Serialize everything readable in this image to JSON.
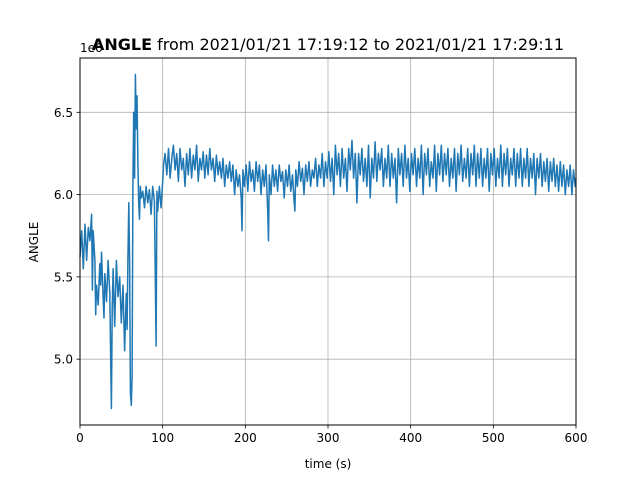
{
  "chart_data": {
    "type": "line",
    "title_bold": "ANGLE",
    "title_rest": " from 2021/01/21 17:19:12 to 2021/01/21 17:29:11",
    "xlabel": "time (s)",
    "ylabel": "ANGLE",
    "offset_label": "1e6",
    "xlim": [
      0,
      600
    ],
    "ylim": [
      4.6,
      6.83
    ],
    "xticks": [
      0,
      100,
      200,
      300,
      400,
      500,
      600
    ],
    "yticks": [
      5.0,
      5.5,
      6.0,
      6.5
    ],
    "xtick_labels": [
      "0",
      "100",
      "200",
      "300",
      "400",
      "500",
      "600"
    ],
    "ytick_labels": [
      "5.0",
      "5.5",
      "6.0",
      "6.5"
    ],
    "grid": true,
    "line_color": "#1f77b4",
    "series": [
      {
        "values": [
          [
            0,
            5.62
          ],
          [
            2,
            5.78
          ],
          [
            4,
            5.55
          ],
          [
            6,
            5.82
          ],
          [
            8,
            5.6
          ],
          [
            10,
            5.8
          ],
          [
            12,
            5.72
          ],
          [
            14,
            5.88
          ],
          [
            15,
            5.42
          ],
          [
            16,
            5.78
          ],
          [
            18,
            5.6
          ],
          [
            19,
            5.27
          ],
          [
            20,
            5.45
          ],
          [
            22,
            5.33
          ],
          [
            24,
            5.58
          ],
          [
            25,
            5.45
          ],
          [
            26,
            5.65
          ],
          [
            28,
            5.38
          ],
          [
            29,
            5.25
          ],
          [
            30,
            5.52
          ],
          [
            32,
            5.35
          ],
          [
            34,
            5.6
          ],
          [
            36,
            5.4
          ],
          [
            37,
            5.04
          ],
          [
            38,
            4.7
          ],
          [
            39,
            5.3
          ],
          [
            40,
            5.55
          ],
          [
            42,
            5.2
          ],
          [
            44,
            5.6
          ],
          [
            46,
            5.38
          ],
          [
            48,
            5.5
          ],
          [
            50,
            5.22
          ],
          [
            52,
            5.45
          ],
          [
            54,
            5.05
          ],
          [
            56,
            5.4
          ],
          [
            57,
            5.18
          ],
          [
            58,
            5.6
          ],
          [
            59,
            5.95
          ],
          [
            60,
            5.6
          ],
          [
            61,
            4.8
          ],
          [
            62,
            4.72
          ],
          [
            63,
            4.9
          ],
          [
            64,
            6.05
          ],
          [
            65,
            6.5
          ],
          [
            66,
            6.1
          ],
          [
            67,
            6.73
          ],
          [
            68,
            6.4
          ],
          [
            69,
            6.6
          ],
          [
            70,
            6.2
          ],
          [
            71,
            5.95
          ],
          [
            72,
            5.85
          ],
          [
            73,
            6.05
          ],
          [
            74,
            5.98
          ],
          [
            76,
            6.02
          ],
          [
            78,
            5.92
          ],
          [
            80,
            6.05
          ],
          [
            82,
            5.95
          ],
          [
            84,
            6.03
          ],
          [
            86,
            5.88
          ],
          [
            88,
            6.05
          ],
          [
            90,
            5.96
          ],
          [
            92,
            5.08
          ],
          [
            93,
            6.02
          ],
          [
            94,
            5.9
          ],
          [
            96,
            6.05
          ],
          [
            98,
            5.92
          ],
          [
            100,
            6.08
          ],
          [
            101,
            6.18
          ],
          [
            103,
            6.25
          ],
          [
            105,
            6.12
          ],
          [
            107,
            6.28
          ],
          [
            109,
            6.1
          ],
          [
            111,
            6.22
          ],
          [
            113,
            6.3
          ],
          [
            115,
            6.15
          ],
          [
            117,
            6.25
          ],
          [
            119,
            6.08
          ],
          [
            121,
            6.28
          ],
          [
            123,
            6.15
          ],
          [
            125,
            6.22
          ],
          [
            127,
            6.05
          ],
          [
            129,
            6.25
          ],
          [
            131,
            6.12
          ],
          [
            133,
            6.28
          ],
          [
            135,
            6.1
          ],
          [
            137,
            6.24
          ],
          [
            139,
            6.15
          ],
          [
            141,
            6.3
          ],
          [
            143,
            6.08
          ],
          [
            145,
            6.22
          ],
          [
            147,
            6.15
          ],
          [
            149,
            6.26
          ],
          [
            151,
            6.1
          ],
          [
            153,
            6.24
          ],
          [
            155,
            6.12
          ],
          [
            157,
            6.28
          ],
          [
            159,
            6.15
          ],
          [
            161,
            6.22
          ],
          [
            163,
            6.08
          ],
          [
            165,
            6.24
          ],
          [
            167,
            6.12
          ],
          [
            169,
            6.2
          ],
          [
            171,
            6.1
          ],
          [
            173,
            6.22
          ],
          [
            175,
            6.05
          ],
          [
            177,
            6.18
          ],
          [
            179,
            6.1
          ],
          [
            181,
            6.2
          ],
          [
            183,
            6.08
          ],
          [
            185,
            6.18
          ],
          [
            187,
            6.0
          ],
          [
            189,
            6.15
          ],
          [
            191,
            6.05
          ],
          [
            193,
            6.12
          ],
          [
            195,
            5.98
          ],
          [
            196,
            5.78
          ],
          [
            197,
            6.15
          ],
          [
            199,
            6.05
          ],
          [
            201,
            6.18
          ],
          [
            203,
            6.02
          ],
          [
            205,
            6.2
          ],
          [
            207,
            6.08
          ],
          [
            209,
            6.15
          ],
          [
            211,
            6.02
          ],
          [
            213,
            6.2
          ],
          [
            215,
            6.08
          ],
          [
            217,
            6.18
          ],
          [
            219,
            6.0
          ],
          [
            221,
            6.15
          ],
          [
            223,
            6.05
          ],
          [
            225,
            6.18
          ],
          [
            227,
            5.9
          ],
          [
            228,
            5.72
          ],
          [
            229,
            6.12
          ],
          [
            231,
            6.0
          ],
          [
            233,
            6.18
          ],
          [
            235,
            6.05
          ],
          [
            237,
            6.15
          ],
          [
            239,
            6.02
          ],
          [
            241,
            6.18
          ],
          [
            243,
            6.08
          ],
          [
            245,
            6.14
          ],
          [
            247,
            5.98
          ],
          [
            249,
            6.15
          ],
          [
            251,
            6.05
          ],
          [
            253,
            6.18
          ],
          [
            255,
            6.02
          ],
          [
            257,
            6.12
          ],
          [
            259,
            5.96
          ],
          [
            260,
            5.9
          ],
          [
            261,
            6.15
          ],
          [
            263,
            6.05
          ],
          [
            265,
            6.2
          ],
          [
            267,
            6.08
          ],
          [
            269,
            6.16
          ],
          [
            271,
            6.0
          ],
          [
            273,
            6.18
          ],
          [
            275,
            6.08
          ],
          [
            277,
            6.2
          ],
          [
            279,
            6.05
          ],
          [
            281,
            6.15
          ],
          [
            283,
            6.1
          ],
          [
            285,
            6.22
          ],
          [
            287,
            6.05
          ],
          [
            289,
            6.18
          ],
          [
            291,
            6.1
          ],
          [
            293,
            6.25
          ],
          [
            295,
            6.05
          ],
          [
            297,
            6.2
          ],
          [
            299,
            6.1
          ],
          [
            301,
            6.26
          ],
          [
            303,
            6.08
          ],
          [
            305,
            6.22
          ],
          [
            307,
            6.0
          ],
          [
            309,
            6.3
          ],
          [
            311,
            6.12
          ],
          [
            313,
            6.25
          ],
          [
            315,
            6.05
          ],
          [
            317,
            6.28
          ],
          [
            319,
            6.1
          ],
          [
            321,
            6.22
          ],
          [
            323,
            6.02
          ],
          [
            325,
            6.28
          ],
          [
            327,
            6.15
          ],
          [
            329,
            6.33
          ],
          [
            331,
            6.1
          ],
          [
            333,
            6.25
          ],
          [
            335,
            5.95
          ],
          [
            337,
            6.25
          ],
          [
            339,
            6.12
          ],
          [
            341,
            6.28
          ],
          [
            343,
            6.08
          ],
          [
            345,
            6.22
          ],
          [
            347,
            6.05
          ],
          [
            349,
            6.3
          ],
          [
            351,
            5.98
          ],
          [
            353,
            6.22
          ],
          [
            355,
            6.1
          ],
          [
            357,
            6.32
          ],
          [
            359,
            6.08
          ],
          [
            361,
            6.25
          ],
          [
            363,
            6.15
          ],
          [
            365,
            6.28
          ],
          [
            367,
            6.05
          ],
          [
            369,
            6.22
          ],
          [
            371,
            6.1
          ],
          [
            373,
            6.3
          ],
          [
            375,
            6.05
          ],
          [
            377,
            6.25
          ],
          [
            379,
            6.1
          ],
          [
            381,
            6.22
          ],
          [
            383,
            5.95
          ],
          [
            385,
            6.28
          ],
          [
            387,
            6.12
          ],
          [
            389,
            6.25
          ],
          [
            391,
            6.05
          ],
          [
            393,
            6.3
          ],
          [
            395,
            6.1
          ],
          [
            397,
            6.22
          ],
          [
            399,
            6.02
          ],
          [
            401,
            6.25
          ],
          [
            403,
            6.12
          ],
          [
            405,
            6.28
          ],
          [
            407,
            6.05
          ],
          [
            409,
            6.22
          ],
          [
            411,
            6.1
          ],
          [
            413,
            6.3
          ],
          [
            415,
            6.0
          ],
          [
            417,
            6.25
          ],
          [
            419,
            6.12
          ],
          [
            421,
            6.28
          ],
          [
            423,
            6.05
          ],
          [
            425,
            6.2
          ],
          [
            427,
            6.1
          ],
          [
            429,
            6.3
          ],
          [
            431,
            6.02
          ],
          [
            433,
            6.25
          ],
          [
            435,
            6.12
          ],
          [
            437,
            6.3
          ],
          [
            439,
            6.08
          ],
          [
            441,
            6.25
          ],
          [
            443,
            6.12
          ],
          [
            445,
            6.28
          ],
          [
            447,
            6.05
          ],
          [
            449,
            6.22
          ],
          [
            451,
            6.1
          ],
          [
            453,
            6.28
          ],
          [
            455,
            6.02
          ],
          [
            457,
            6.25
          ],
          [
            459,
            6.12
          ],
          [
            461,
            6.3
          ],
          [
            463,
            6.08
          ],
          [
            465,
            6.22
          ],
          [
            467,
            6.1
          ],
          [
            469,
            6.28
          ],
          [
            471,
            6.05
          ],
          [
            473,
            6.25
          ],
          [
            475,
            6.12
          ],
          [
            477,
            6.3
          ],
          [
            479,
            6.05
          ],
          [
            481,
            6.25
          ],
          [
            483,
            6.1
          ],
          [
            485,
            6.28
          ],
          [
            487,
            6.05
          ],
          [
            489,
            6.22
          ],
          [
            491,
            6.1
          ],
          [
            493,
            6.28
          ],
          [
            495,
            6.02
          ],
          [
            497,
            6.25
          ],
          [
            499,
            6.12
          ],
          [
            501,
            6.28
          ],
          [
            503,
            6.05
          ],
          [
            505,
            6.22
          ],
          [
            507,
            6.1
          ],
          [
            509,
            6.3
          ],
          [
            511,
            6.05
          ],
          [
            513,
            6.25
          ],
          [
            515,
            6.12
          ],
          [
            517,
            6.28
          ],
          [
            519,
            6.05
          ],
          [
            521,
            6.22
          ],
          [
            523,
            6.12
          ],
          [
            525,
            6.28
          ],
          [
            527,
            6.05
          ],
          [
            529,
            6.25
          ],
          [
            531,
            6.1
          ],
          [
            533,
            6.28
          ],
          [
            535,
            6.05
          ],
          [
            537,
            6.22
          ],
          [
            539,
            6.1
          ],
          [
            541,
            6.28
          ],
          [
            543,
            6.05
          ],
          [
            545,
            6.22
          ],
          [
            547,
            6.1
          ],
          [
            549,
            6.25
          ],
          [
            551,
            6.0
          ],
          [
            553,
            6.22
          ],
          [
            555,
            6.1
          ],
          [
            557,
            6.25
          ],
          [
            559,
            6.05
          ],
          [
            561,
            6.2
          ],
          [
            563,
            6.08
          ],
          [
            565,
            6.22
          ],
          [
            567,
            6.02
          ],
          [
            569,
            6.2
          ],
          [
            571,
            6.08
          ],
          [
            573,
            6.22
          ],
          [
            575,
            6.05
          ],
          [
            577,
            6.18
          ],
          [
            579,
            6.02
          ],
          [
            581,
            6.2
          ],
          [
            583,
            6.05
          ],
          [
            585,
            6.18
          ],
          [
            587,
            6.0
          ],
          [
            589,
            6.15
          ],
          [
            591,
            6.05
          ],
          [
            593,
            6.18
          ],
          [
            595,
            6.0
          ],
          [
            597,
            6.15
          ],
          [
            599,
            6.05
          ],
          [
            600,
            6.1
          ]
        ]
      }
    ]
  }
}
